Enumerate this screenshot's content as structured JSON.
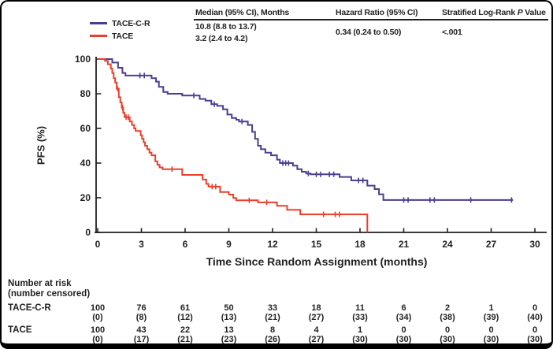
{
  "accent_colors": {
    "tace_c_r": "#4b3e92",
    "tace": "#e8402c",
    "ink": "#231f20"
  },
  "legend": {
    "items": [
      {
        "label": "TACE-C-R",
        "color": "#4b3e92"
      },
      {
        "label": "TACE",
        "color": "#e8402c"
      }
    ]
  },
  "stats": {
    "median": {
      "header": "Median (95% CI), Months",
      "row1": "10.8 (8.8 to 13.7)",
      "row2": "3.2 (2.4 to 4.2)"
    },
    "hazard": {
      "header": "Hazard Ratio (95% CI)",
      "value": "0.34 (0.24 to 0.50)"
    },
    "logrank": {
      "header_pre": "Stratified Log-Rank",
      "header_italic": "P",
      "header_post": "Value",
      "value": "<.001"
    }
  },
  "chart_data": {
    "type": "line",
    "subtype": "kaplan-meier-step",
    "title": "",
    "xlabel": "Time Since Random Assignment (months)",
    "ylabel": "PFS (%)",
    "xlim": [
      0,
      31
    ],
    "ylim": [
      0,
      100
    ],
    "x_ticks": [
      0,
      3,
      6,
      9,
      12,
      15,
      18,
      21,
      24,
      27,
      30
    ],
    "y_ticks": [
      0,
      20,
      40,
      60,
      80,
      100
    ],
    "grid": false,
    "legend_position": "top-left",
    "series": [
      {
        "name": "TACE-C-R",
        "color": "#4b3e92",
        "median_months": 10.8,
        "median_ci": "8.8 to 13.7",
        "steps": [
          [
            0,
            100
          ],
          [
            1.0,
            98
          ],
          [
            1.4,
            95
          ],
          [
            1.7,
            92
          ],
          [
            1.9,
            90.5
          ],
          [
            3.7,
            89
          ],
          [
            4.0,
            87
          ],
          [
            4.2,
            84
          ],
          [
            4.5,
            81
          ],
          [
            4.8,
            80
          ],
          [
            5.8,
            79
          ],
          [
            7.0,
            77
          ],
          [
            7.4,
            76
          ],
          [
            7.8,
            74
          ],
          [
            8.2,
            73
          ],
          [
            8.6,
            71
          ],
          [
            8.9,
            68
          ],
          [
            9.2,
            66
          ],
          [
            9.5,
            65
          ],
          [
            9.7,
            64
          ],
          [
            10.3,
            62
          ],
          [
            10.6,
            58
          ],
          [
            10.8,
            54
          ],
          [
            11.0,
            50
          ],
          [
            11.2,
            48
          ],
          [
            11.5,
            46
          ],
          [
            11.9,
            44.5
          ],
          [
            12.3,
            42
          ],
          [
            12.5,
            40
          ],
          [
            13.4,
            38.5
          ],
          [
            13.7,
            36.5
          ],
          [
            14.0,
            35
          ],
          [
            14.3,
            34
          ],
          [
            14.6,
            33.5
          ],
          [
            16.6,
            32
          ],
          [
            17.4,
            30
          ],
          [
            18.5,
            27
          ],
          [
            19.0,
            25
          ],
          [
            19.3,
            22
          ],
          [
            19.6,
            18.7
          ],
          [
            28.5,
            18.7
          ]
        ],
        "censors": [
          [
            2.9,
            90.5
          ],
          [
            3.2,
            90.5
          ],
          [
            6.6,
            79
          ],
          [
            8.0,
            74
          ],
          [
            9.9,
            64
          ],
          [
            12.7,
            40
          ],
          [
            12.9,
            40
          ],
          [
            13.1,
            40
          ],
          [
            14.45,
            34
          ],
          [
            15.0,
            33.5
          ],
          [
            15.3,
            33.5
          ],
          [
            15.9,
            33.5
          ],
          [
            16.2,
            33.5
          ],
          [
            17.9,
            30
          ],
          [
            18.2,
            30
          ],
          [
            21.0,
            18.7
          ],
          [
            21.3,
            18.7
          ],
          [
            22.8,
            18.7
          ],
          [
            23.1,
            18.7
          ],
          [
            25.6,
            18.7
          ],
          [
            28.4,
            18.7
          ]
        ]
      },
      {
        "name": "TACE",
        "color": "#e8402c",
        "median_months": 3.2,
        "median_ci": "2.4 to 4.2",
        "steps": [
          [
            0,
            100
          ],
          [
            0.5,
            99
          ],
          [
            0.7,
            97
          ],
          [
            0.9,
            94.5
          ],
          [
            1.0,
            92
          ],
          [
            1.1,
            89
          ],
          [
            1.2,
            86.5
          ],
          [
            1.3,
            83
          ],
          [
            1.45,
            78
          ],
          [
            1.55,
            75
          ],
          [
            1.65,
            72
          ],
          [
            1.75,
            69
          ],
          [
            1.85,
            66.5
          ],
          [
            2.2,
            64
          ],
          [
            2.35,
            62
          ],
          [
            2.5,
            60
          ],
          [
            2.6,
            58.5
          ],
          [
            2.95,
            56
          ],
          [
            3.05,
            54
          ],
          [
            3.15,
            52
          ],
          [
            3.25,
            50
          ],
          [
            3.4,
            48
          ],
          [
            3.55,
            46
          ],
          [
            3.7,
            44.5
          ],
          [
            3.95,
            41
          ],
          [
            4.1,
            39
          ],
          [
            4.25,
            37.5
          ],
          [
            4.45,
            36.5
          ],
          [
            5.8,
            33.2
          ],
          [
            7.2,
            30.5
          ],
          [
            7.45,
            28
          ],
          [
            7.6,
            26.4
          ],
          [
            8.4,
            23.3
          ],
          [
            9.0,
            21.8
          ],
          [
            9.3,
            19.9
          ],
          [
            9.5,
            18.5
          ],
          [
            11.0,
            17.3
          ],
          [
            12.3,
            15.3
          ],
          [
            13.0,
            13.0
          ],
          [
            13.9,
            10.4
          ],
          [
            18.5,
            0
          ]
        ],
        "censors": [
          [
            1.35,
            83
          ],
          [
            1.7,
            72
          ],
          [
            1.95,
            66.5
          ],
          [
            2.1,
            66.5
          ],
          [
            5.1,
            36.5
          ],
          [
            7.85,
            26.4
          ],
          [
            8.1,
            26.4
          ],
          [
            10.4,
            18.5
          ],
          [
            11.6,
            17.3
          ],
          [
            15.5,
            10.4
          ],
          [
            16.3,
            10.4
          ],
          [
            16.6,
            10.4
          ]
        ]
      }
    ],
    "hazard_ratio": "0.34 (0.24 to 0.50)",
    "stratified_logrank_p": "<.001"
  },
  "risk_table": {
    "heading_line1": "Number at risk",
    "heading_line2": "(number censored)",
    "months": [
      0,
      3,
      6,
      9,
      12,
      15,
      18,
      21,
      24,
      27,
      30
    ],
    "rows": [
      {
        "label": "TACE-C-R",
        "at_risk": [
          100,
          76,
          61,
          50,
          33,
          18,
          11,
          6,
          2,
          1,
          0
        ],
        "censored": [
          0,
          8,
          12,
          13,
          21,
          27,
          33,
          34,
          38,
          39,
          40
        ]
      },
      {
        "label": "TACE",
        "at_risk": [
          100,
          43,
          22,
          13,
          8,
          4,
          1,
          0,
          0,
          0,
          0
        ],
        "censored": [
          0,
          17,
          21,
          23,
          26,
          27,
          30,
          30,
          30,
          30,
          30
        ]
      }
    ]
  }
}
